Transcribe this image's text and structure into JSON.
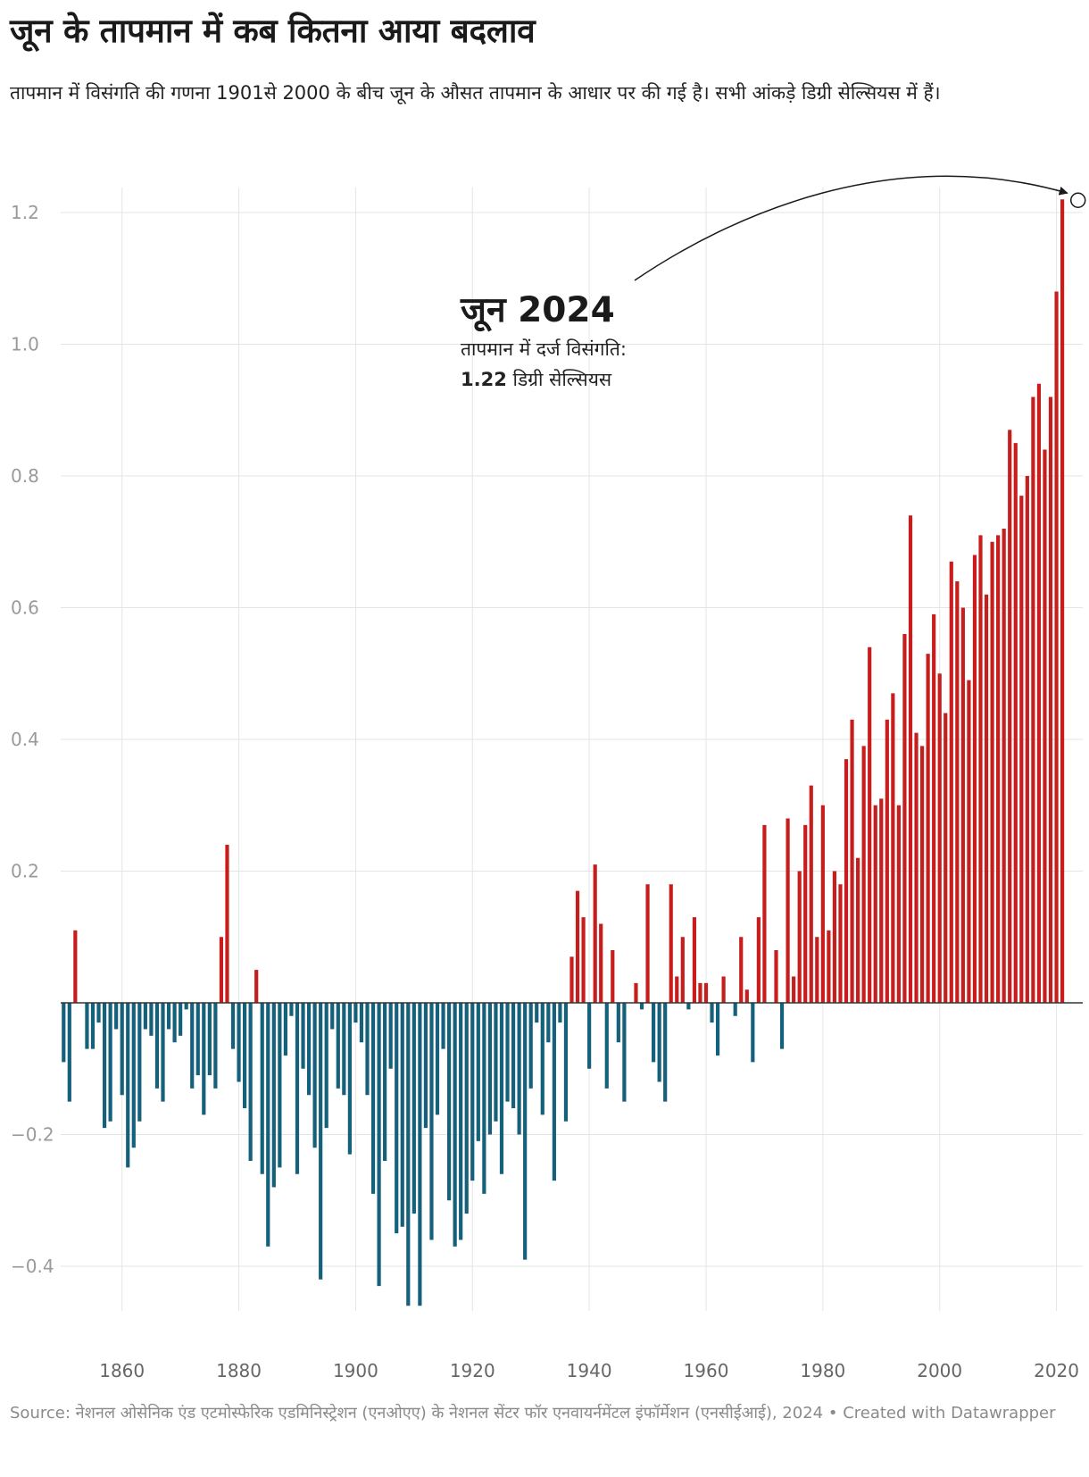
{
  "title": "जून के तापमान में कब कितना आया बदलाव",
  "subtitle": "तापमान में विसंगति की गणना 1901से 2000 के बीच जून के औसत तापमान के आधार पर की गई है। सभी आंकड़े डिग्री सेल्सियस में हैं।",
  "footer": "Source: नेशनल ओसेनिक एंड एटमोस्फेरिक एडमिनिस्ट्रेशन (एनओएए) के नेशनल सेंटर फॉर एनवायर्नमेंटल इंफॉर्मेशन (एनसीईआई), 2024 • Created with Datawrapper",
  "annotation": {
    "heading": "जून 2024",
    "line1": "तापमान में दर्ज विसंगति:",
    "value": "1.22",
    "unit": " डिग्री सेल्सियस"
  },
  "colors": {
    "positive": "#c71e1d",
    "negative": "#15607a",
    "grid": "#e4e4e4",
    "zero": "#333333"
  },
  "chart_data": {
    "type": "bar",
    "title": "जून के तापमान में कब कितना आया बदलाव",
    "xlabel": "",
    "ylabel": "",
    "ylim": [
      -0.46,
      1.24
    ],
    "xlim": [
      1849.5,
      2024.5
    ],
    "yticks": [
      1.2,
      1.0,
      0.8,
      0.6,
      0.4,
      0.2,
      -0.2,
      -0.4
    ],
    "ytick_labels": [
      "1.2",
      "1.0",
      "0.8",
      "0.6",
      "0.4",
      "0.2",
      "−0.2",
      "−0.4"
    ],
    "xticks": [
      1860,
      1880,
      1900,
      1920,
      1940,
      1960,
      1980,
      2000,
      2020
    ],
    "xtick_labels": [
      "1860",
      "1880",
      "1900",
      "1920",
      "1940",
      "1960",
      "1980",
      "2000",
      "2020"
    ],
    "grid": true,
    "start_year": 1850,
    "values": [
      -0.09,
      -0.15,
      0.11,
      0.0,
      -0.07,
      -0.07,
      -0.03,
      -0.19,
      -0.18,
      -0.04,
      -0.14,
      -0.25,
      -0.22,
      -0.18,
      -0.04,
      -0.05,
      -0.13,
      -0.15,
      -0.04,
      -0.06,
      -0.05,
      -0.01,
      -0.13,
      -0.11,
      -0.17,
      -0.11,
      -0.13,
      0.1,
      0.24,
      -0.07,
      -0.12,
      -0.16,
      -0.24,
      0.05,
      -0.26,
      -0.37,
      -0.28,
      -0.25,
      -0.08,
      -0.02,
      -0.26,
      -0.1,
      -0.14,
      -0.22,
      -0.42,
      -0.19,
      -0.04,
      -0.13,
      -0.14,
      -0.23,
      -0.03,
      -0.06,
      -0.14,
      -0.29,
      -0.43,
      -0.24,
      -0.1,
      -0.35,
      -0.34,
      -0.46,
      -0.32,
      -0.46,
      -0.19,
      -0.36,
      -0.17,
      -0.07,
      -0.3,
      -0.37,
      -0.36,
      -0.32,
      -0.27,
      -0.21,
      -0.29,
      -0.2,
      -0.18,
      -0.26,
      -0.15,
      -0.16,
      -0.2,
      -0.39,
      -0.13,
      -0.03,
      -0.17,
      -0.06,
      -0.27,
      -0.03,
      -0.18,
      0.07,
      0.17,
      0.13,
      -0.1,
      0.21,
      0.12,
      -0.13,
      0.08,
      -0.06,
      -0.15,
      0.0,
      0.03,
      -0.01,
      0.18,
      -0.09,
      -0.12,
      -0.15,
      0.18,
      0.04,
      0.1,
      -0.01,
      0.13,
      0.03,
      0.03,
      -0.03,
      -0.08,
      0.04,
      0.0,
      -0.02,
      0.1,
      0.02,
      -0.09,
      0.13,
      0.27,
      0.0,
      0.08,
      -0.07,
      0.28,
      0.04,
      0.2,
      0.27,
      0.33,
      0.1,
      0.3,
      0.11,
      0.2,
      0.18,
      0.37,
      0.43,
      0.22,
      0.39,
      0.54,
      0.3,
      0.31,
      0.43,
      0.47,
      0.3,
      0.56,
      0.74,
      0.41,
      0.39,
      0.53,
      0.59,
      0.5,
      0.44,
      0.67,
      0.64,
      0.6,
      0.49,
      0.68,
      0.71,
      0.62,
      0.7,
      0.71,
      0.72,
      0.87,
      0.85,
      0.77,
      0.8,
      0.92,
      0.94,
      0.84,
      0.92,
      1.08,
      1.22
    ],
    "annotation": {
      "year": 2024,
      "value": 1.22
    }
  }
}
